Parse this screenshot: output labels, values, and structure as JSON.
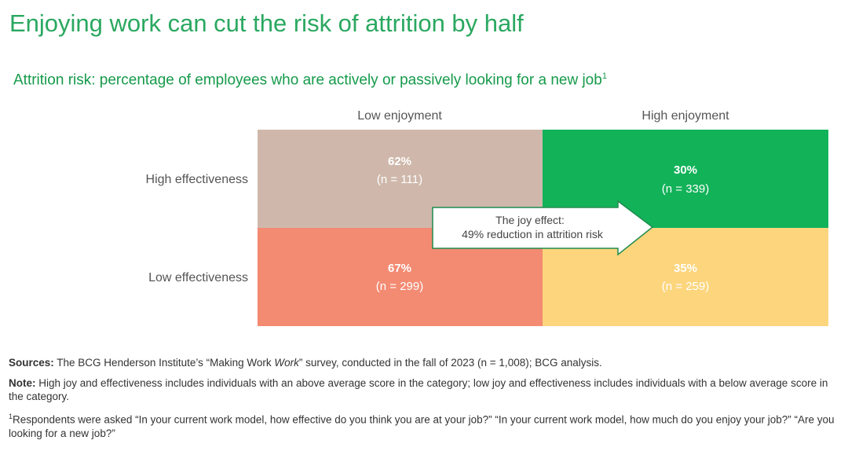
{
  "title": "Enjoying work can cut the risk of attrition by half",
  "subtitle": "Attrition risk: percentage of employees who are actively or passively looking for a new job",
  "subtitle_footnote_mark": "1",
  "colors": {
    "title": "#2aa860",
    "subtitle": "#159a4a",
    "high_eff_low_joy": "#cfb8ab",
    "high_eff_high_joy": "#12b259",
    "low_eff_low_joy": "#f38a72",
    "low_eff_high_joy": "#fcd57d",
    "arrow_border": "#1f8c4e"
  },
  "chart_data": {
    "type": "heatmap",
    "columns": [
      "Low enjoyment",
      "High enjoyment"
    ],
    "rows": [
      "High effectiveness",
      "Low effectiveness"
    ],
    "cells": [
      [
        {
          "value": "62%",
          "n": "(n = 111)"
        },
        {
          "value": "30%",
          "n": "(n = 339)"
        }
      ],
      [
        {
          "value": "67%",
          "n": "(n = 299)"
        },
        {
          "value": "35%",
          "n": "(n = 259)"
        }
      ]
    ],
    "annotation": {
      "line1": "The joy effect:",
      "line2": "49% reduction in attrition risk"
    }
  },
  "notes": {
    "sources_label": "Sources:",
    "sources_text_before": " The BCG Henderson Institute’s “Making Work ",
    "sources_italic": "Work",
    "sources_text_after": "” survey, conducted in the fall of 2023 (n = 1,008); BCG analysis.",
    "note_label": "Note:",
    "note_text": " High joy and effectiveness includes individuals with an above average score in the category; low joy and effectiveness includes individuals with a below average score in the category.",
    "footnote_mark": "1",
    "footnote_text": "Respondents were asked “In your current work model, how effective do you think you are at your job?” “In your current work model, how much do you enjoy your job?” “Are you looking for a new job?”"
  }
}
